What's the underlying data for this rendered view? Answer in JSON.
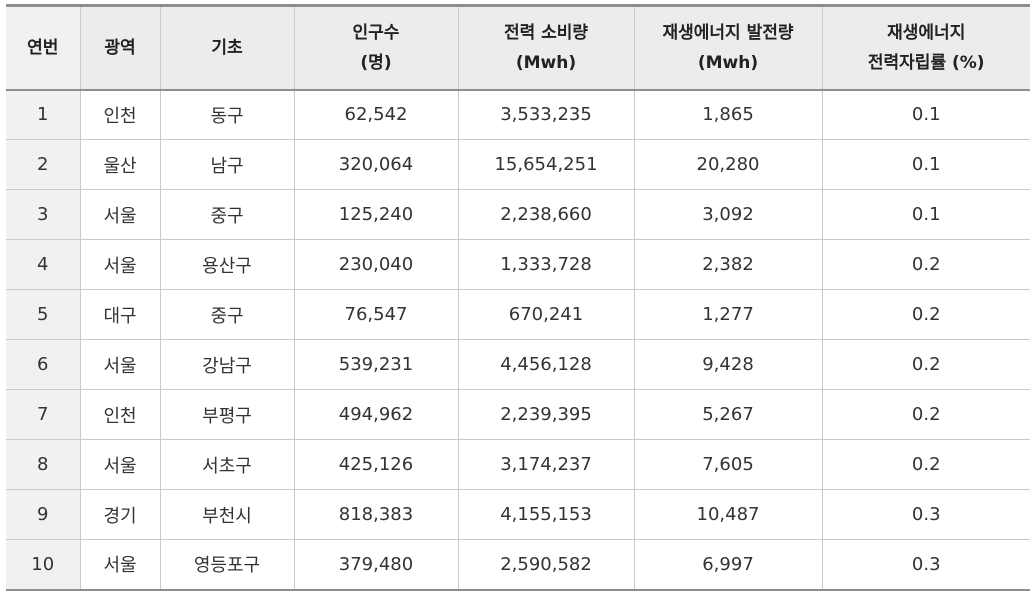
{
  "table": {
    "headers": [
      {
        "line1": "연번",
        "line2": ""
      },
      {
        "line1": "광역",
        "line2": ""
      },
      {
        "line1": "기초",
        "line2": ""
      },
      {
        "line1": "인구수",
        "line2": "(명)"
      },
      {
        "line1": "전력 소비량",
        "line2": "(Mwh)"
      },
      {
        "line1": "재생에너지 발전량",
        "line2": "(Mwh)"
      },
      {
        "line1": "재생에너지",
        "line2": "전력자립률 (%)"
      }
    ],
    "rows": [
      [
        "1",
        "인천",
        "동구",
        "62,542",
        "3,533,235",
        "1,865",
        "0.1"
      ],
      [
        "2",
        "울산",
        "남구",
        "320,064",
        "15,654,251",
        "20,280",
        "0.1"
      ],
      [
        "3",
        "서울",
        "중구",
        "125,240",
        "2,238,660",
        "3,092",
        "0.1"
      ],
      [
        "4",
        "서울",
        "용산구",
        "230,040",
        "1,333,728",
        "2,382",
        "0.2"
      ],
      [
        "5",
        "대구",
        "중구",
        "76,547",
        "670,241",
        "1,277",
        "0.2"
      ],
      [
        "6",
        "서울",
        "강남구",
        "539,231",
        "4,456,128",
        "9,428",
        "0.2"
      ],
      [
        "7",
        "인천",
        "부평구",
        "494,962",
        "2,239,395",
        "5,267",
        "0.2"
      ],
      [
        "8",
        "서울",
        "서초구",
        "425,126",
        "3,174,237",
        "7,605",
        "0.2"
      ],
      [
        "9",
        "경기",
        "부천시",
        "818,383",
        "4,155,153",
        "10,487",
        "0.3"
      ],
      [
        "10",
        "서울",
        "영등포구",
        "379,480",
        "2,590,582",
        "6,997",
        "0.3"
      ]
    ]
  }
}
